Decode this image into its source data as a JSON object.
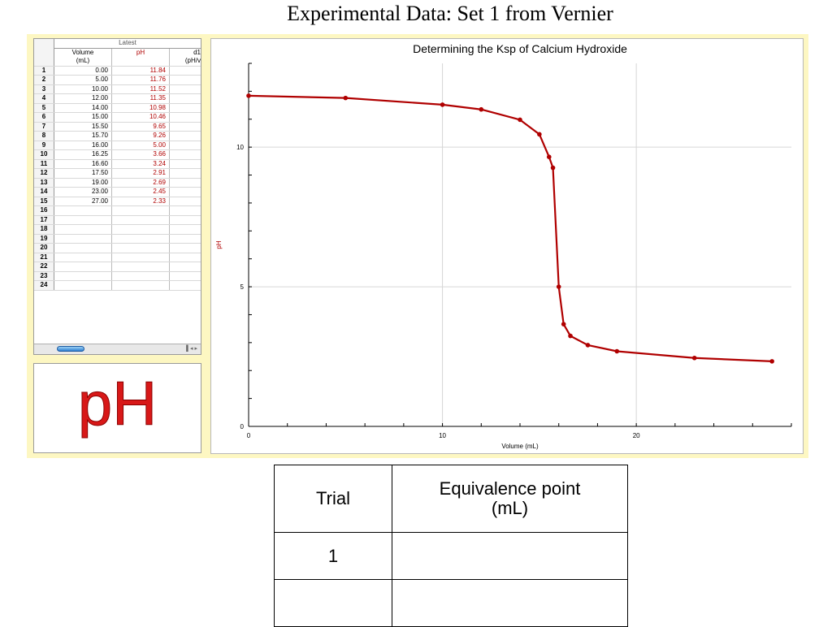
{
  "page_title": "Experimental Data:  Set 1 from Vernier",
  "data_table": {
    "group_header": "Latest",
    "columns": [
      {
        "name": "Volume",
        "unit": "(mL)"
      },
      {
        "name": "pH",
        "unit": ""
      },
      {
        "name": "d1",
        "unit": "(pH/v"
      }
    ],
    "row_numbers": [
      "1",
      "2",
      "3",
      "4",
      "5",
      "6",
      "7",
      "8",
      "9",
      "10",
      "11",
      "12",
      "13",
      "14",
      "15",
      "16",
      "17",
      "18",
      "19",
      "20",
      "21",
      "22",
      "23",
      "24"
    ],
    "rows": [
      {
        "volume": "0.00",
        "ph": "11.84"
      },
      {
        "volume": "5.00",
        "ph": "11.76"
      },
      {
        "volume": "10.00",
        "ph": "11.52"
      },
      {
        "volume": "12.00",
        "ph": "11.35"
      },
      {
        "volume": "14.00",
        "ph": "10.98"
      },
      {
        "volume": "15.00",
        "ph": "10.46"
      },
      {
        "volume": "15.50",
        "ph": "9.65"
      },
      {
        "volume": "15.70",
        "ph": "9.26"
      },
      {
        "volume": "16.00",
        "ph": "5.00"
      },
      {
        "volume": "16.25",
        "ph": "3.66"
      },
      {
        "volume": "16.60",
        "ph": "3.24"
      },
      {
        "volume": "17.50",
        "ph": "2.91"
      },
      {
        "volume": "19.00",
        "ph": "2.69"
      },
      {
        "volume": "23.00",
        "ph": "2.45"
      },
      {
        "volume": "27.00",
        "ph": "2.33"
      }
    ]
  },
  "meter": {
    "label": "pH",
    "color": "#d81818"
  },
  "chart_data": {
    "type": "line",
    "title": "Determining the Ksp of Calcium Hydroxide",
    "xlabel": "Volume (mL)",
    "ylabel": "pH",
    "xlim": [
      0,
      28
    ],
    "ylim": [
      0,
      13
    ],
    "x_ticks": [
      0,
      10,
      20
    ],
    "y_ticks": [
      0,
      5,
      10
    ],
    "grid": true,
    "color": "#b00000",
    "series": [
      {
        "x": [
          0,
          5,
          10,
          12,
          14,
          15,
          15.5,
          15.7,
          16,
          16.25,
          16.6,
          17.5,
          19,
          23,
          27
        ],
        "y": [
          11.84,
          11.76,
          11.52,
          11.35,
          10.98,
          10.46,
          9.65,
          9.26,
          5.0,
          3.66,
          3.24,
          2.91,
          2.69,
          2.45,
          2.33
        ]
      }
    ]
  },
  "results_table": {
    "headers": [
      "Trial",
      "Equivalence point\n(mL)"
    ],
    "rows": [
      {
        "trial": "1",
        "equivalence": ""
      },
      {
        "trial": "",
        "equivalence": ""
      }
    ]
  }
}
